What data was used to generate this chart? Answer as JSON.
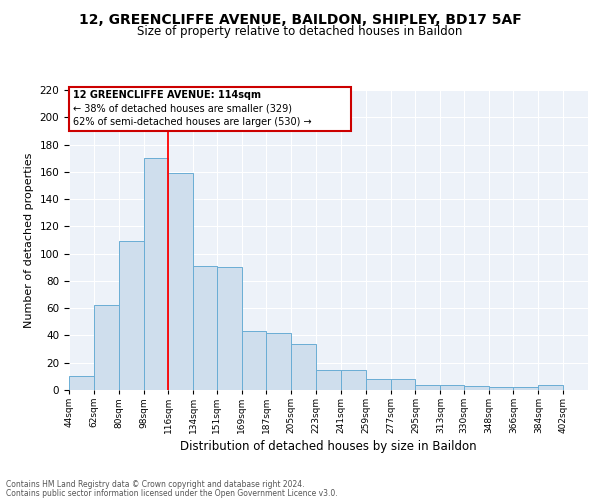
{
  "title1": "12, GREENCLIFFE AVENUE, BAILDON, SHIPLEY, BD17 5AF",
  "title2": "Size of property relative to detached houses in Baildon",
  "xlabel": "Distribution of detached houses by size in Baildon",
  "ylabel": "Number of detached properties",
  "footnote1": "Contains HM Land Registry data © Crown copyright and database right 2024.",
  "footnote2": "Contains public sector information licensed under the Open Government Licence v3.0.",
  "annotation_line1": "12 GREENCLIFFE AVENUE: 114sqm",
  "annotation_line2": "← 38% of detached houses are smaller (329)",
  "annotation_line3": "62% of semi-detached houses are larger (530) →",
  "bar_color": "#cfdeed",
  "bar_edge_color": "#6aadd5",
  "redline_x": 116,
  "bin_left_edges": [
    44,
    62,
    80,
    98,
    116,
    134,
    151,
    169,
    187,
    205,
    223,
    241,
    259,
    277,
    295,
    313,
    330,
    348,
    366,
    384,
    402
  ],
  "bin_counts": [
    10,
    62,
    109,
    170,
    159,
    91,
    90,
    43,
    42,
    34,
    15,
    15,
    8,
    8,
    4,
    4,
    3,
    2,
    2,
    4,
    0
  ],
  "bin_widths": [
    18,
    18,
    18,
    18,
    18,
    17,
    18,
    18,
    18,
    18,
    18,
    18,
    18,
    18,
    18,
    17,
    18,
    18,
    18,
    18,
    18
  ],
  "xtick_labels": [
    "44sqm",
    "62sqm",
    "80sqm",
    "98sqm",
    "116sqm",
    "134sqm",
    "151sqm",
    "169sqm",
    "187sqm",
    "205sqm",
    "223sqm",
    "241sqm",
    "259sqm",
    "277sqm",
    "295sqm",
    "313sqm",
    "330sqm",
    "348sqm",
    "366sqm",
    "384sqm",
    "402sqm"
  ],
  "xlim": [
    44,
    420
  ],
  "ylim": [
    0,
    220
  ],
  "yticks": [
    0,
    20,
    40,
    60,
    80,
    100,
    120,
    140,
    160,
    180,
    200,
    220
  ],
  "annotation_box_facecolor": "#ffffff",
  "annotation_box_edgecolor": "#cc0000",
  "background_color": "#edf2f9"
}
